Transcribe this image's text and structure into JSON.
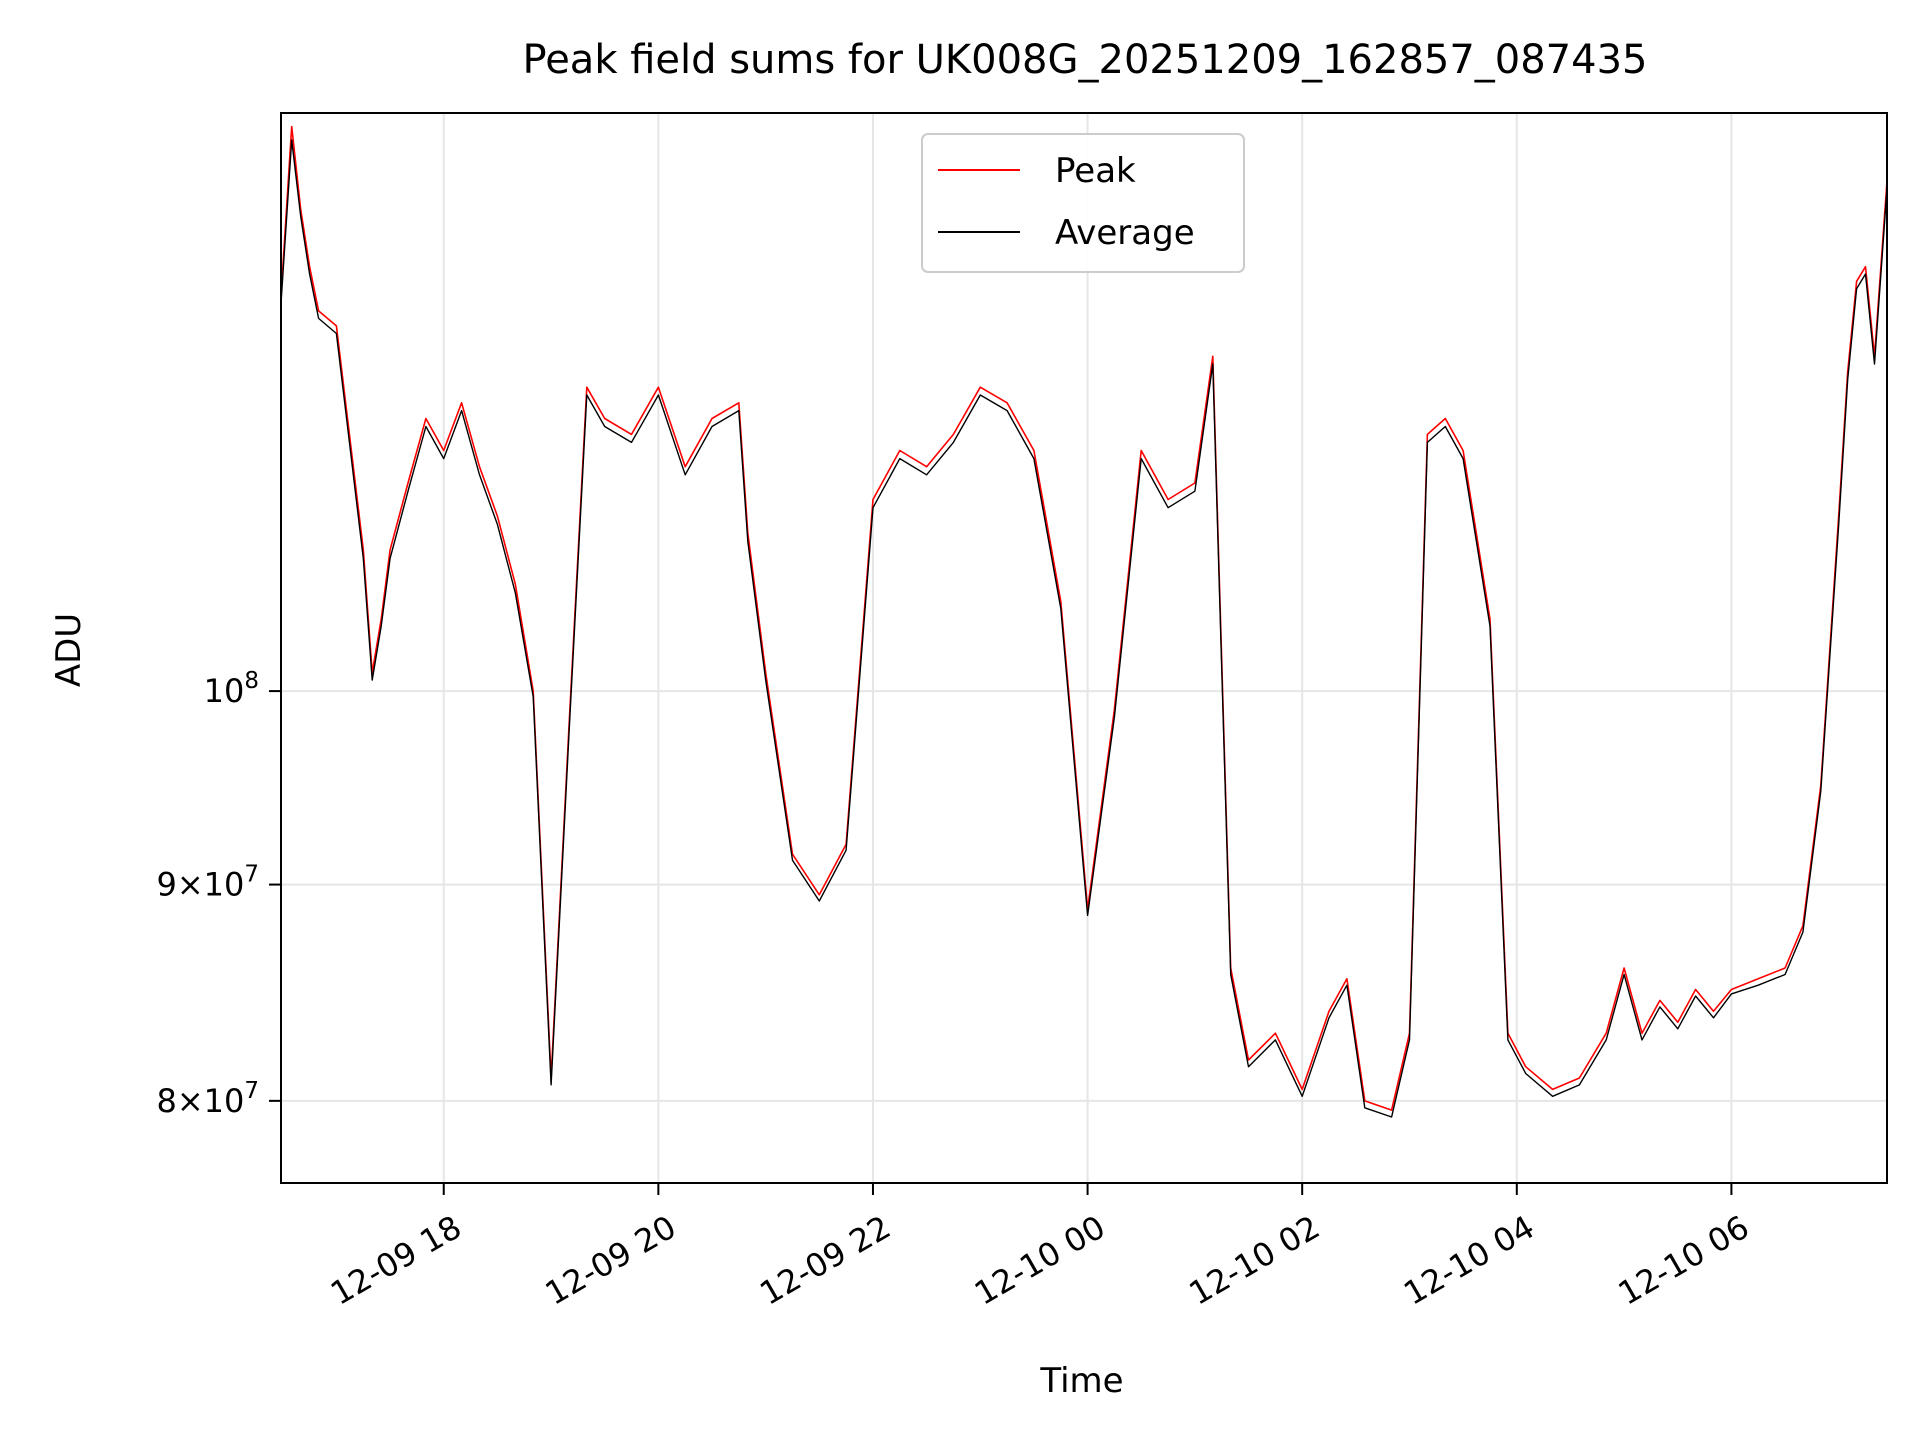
{
  "chart_data": {
    "type": "line",
    "title": "Peak field sums for UK008G_20251209_162857_087435",
    "xlabel": "Time",
    "ylabel": "ADU",
    "yscale": "log",
    "ylim": [
      76500000,
      137000000
    ],
    "xlim": [
      "2025-12-09 16:29",
      "2025-12-10 07:27"
    ],
    "grid": true,
    "legend_placement": "upper center",
    "x_ticks": [
      {
        "x": "2025-12-09 18:00",
        "label": "12-09 18"
      },
      {
        "x": "2025-12-09 20:00",
        "label": "12-09 20"
      },
      {
        "x": "2025-12-09 22:00",
        "label": "12-09 22"
      },
      {
        "x": "2025-12-10 00:00",
        "label": "12-10 00"
      },
      {
        "x": "2025-12-10 02:00",
        "label": "12-10 02"
      },
      {
        "x": "2025-12-10 04:00",
        "label": "12-10 04"
      },
      {
        "x": "2025-12-10 06:00",
        "label": "12-10 06"
      }
    ],
    "y_ticks": [
      {
        "value": 80000000,
        "base": "8",
        "exp": "7"
      },
      {
        "value": 90000000,
        "base": "9",
        "exp": "7"
      },
      {
        "value": 100000000,
        "base": "",
        "exp": "8"
      }
    ],
    "series": [
      {
        "name": "Peak",
        "color": "#ff0000",
        "x": [
          "2025-12-09 16:29",
          "2025-12-09 16:35",
          "2025-12-09 16:40",
          "2025-12-09 16:45",
          "2025-12-09 16:50",
          "2025-12-09 17:00",
          "2025-12-09 17:15",
          "2025-12-09 17:20",
          "2025-12-09 17:25",
          "2025-12-09 17:30",
          "2025-12-09 17:40",
          "2025-12-09 17:50",
          "2025-12-09 18:00",
          "2025-12-09 18:10",
          "2025-12-09 18:20",
          "2025-12-09 18:30",
          "2025-12-09 18:40",
          "2025-12-09 18:50",
          "2025-12-09 19:00",
          "2025-12-09 19:10",
          "2025-12-09 19:20",
          "2025-12-09 19:30",
          "2025-12-09 19:45",
          "2025-12-09 20:00",
          "2025-12-09 20:15",
          "2025-12-09 20:30",
          "2025-12-09 20:45",
          "2025-12-09 20:50",
          "2025-12-09 21:00",
          "2025-12-09 21:15",
          "2025-12-09 21:30",
          "2025-12-09 21:45",
          "2025-12-09 22:00",
          "2025-12-09 22:15",
          "2025-12-09 22:30",
          "2025-12-09 22:45",
          "2025-12-09 23:00",
          "2025-12-09 23:15",
          "2025-12-09 23:30",
          "2025-12-09 23:45",
          "2025-12-10 00:00",
          "2025-12-10 00:15",
          "2025-12-10 00:30",
          "2025-12-10 00:45",
          "2025-12-10 01:00",
          "2025-12-10 01:10",
          "2025-12-10 01:20",
          "2025-12-10 01:30",
          "2025-12-10 01:45",
          "2025-12-10 02:00",
          "2025-12-10 02:15",
          "2025-12-10 02:25",
          "2025-12-10 02:35",
          "2025-12-10 02:50",
          "2025-12-10 03:00",
          "2025-12-10 03:10",
          "2025-12-10 03:20",
          "2025-12-10 03:30",
          "2025-12-10 03:45",
          "2025-12-10 03:55",
          "2025-12-10 04:05",
          "2025-12-10 04:20",
          "2025-12-10 04:35",
          "2025-12-10 04:50",
          "2025-12-10 05:00",
          "2025-12-10 05:10",
          "2025-12-10 05:20",
          "2025-12-10 05:30",
          "2025-12-10 05:40",
          "2025-12-10 05:50",
          "2025-12-10 06:00",
          "2025-12-10 06:15",
          "2025-12-10 06:30",
          "2025-12-10 06:40",
          "2025-12-10 06:50",
          "2025-12-10 07:00",
          "2025-12-10 07:05",
          "2025-12-10 07:10",
          "2025-12-10 07:15",
          "2025-12-10 07:20",
          "2025-12-10 07:27"
        ],
        "values": [
          124000000,
          136000000,
          130000000,
          126000000,
          123000000,
          122000000,
          108000000,
          101000000,
          104000000,
          108000000,
          112000000,
          116000000,
          114000000,
          117000000,
          113000000,
          110000000,
          106000000,
          100000000,
          81000000,
          98000000,
          118000000,
          116000000,
          115000000,
          118000000,
          113000000,
          116000000,
          117000000,
          109000000,
          101000000,
          91500000,
          89500000,
          92000000,
          111000000,
          114000000,
          113000000,
          115000000,
          118000000,
          117000000,
          114000000,
          105000000,
          88800000,
          99000000,
          114000000,
          111000000,
          112000000,
          120000000,
          86000000,
          81800000,
          83000000,
          80500000,
          84000000,
          85500000,
          80000000,
          79600000,
          83000000,
          115000000,
          116000000,
          114000000,
          104000000,
          83000000,
          81500000,
          80500000,
          81000000,
          83000000,
          86000000,
          83000000,
          84500000,
          83500000,
          85000000,
          84000000,
          85000000,
          85500000,
          86000000,
          88000000,
          95000000,
          110000000,
          119000000,
          125000000,
          126000000,
          120000000,
          132000000
        ]
      },
      {
        "name": "Average",
        "color": "#000000",
        "x": [
          "2025-12-09 16:29",
          "2025-12-09 16:35",
          "2025-12-09 16:40",
          "2025-12-09 16:45",
          "2025-12-09 16:50",
          "2025-12-09 17:00",
          "2025-12-09 17:15",
          "2025-12-09 17:20",
          "2025-12-09 17:25",
          "2025-12-09 17:30",
          "2025-12-09 17:40",
          "2025-12-09 17:50",
          "2025-12-09 18:00",
          "2025-12-09 18:10",
          "2025-12-09 18:20",
          "2025-12-09 18:30",
          "2025-12-09 18:40",
          "2025-12-09 18:50",
          "2025-12-09 19:00",
          "2025-12-09 19:10",
          "2025-12-09 19:20",
          "2025-12-09 19:30",
          "2025-12-09 19:45",
          "2025-12-09 20:00",
          "2025-12-09 20:15",
          "2025-12-09 20:30",
          "2025-12-09 20:45",
          "2025-12-09 20:50",
          "2025-12-09 21:00",
          "2025-12-09 21:15",
          "2025-12-09 21:30",
          "2025-12-09 21:45",
          "2025-12-09 22:00",
          "2025-12-09 22:15",
          "2025-12-09 22:30",
          "2025-12-09 22:45",
          "2025-12-09 23:00",
          "2025-12-09 23:15",
          "2025-12-09 23:30",
          "2025-12-09 23:45",
          "2025-12-10 00:00",
          "2025-12-10 00:15",
          "2025-12-10 00:30",
          "2025-12-10 00:45",
          "2025-12-10 01:00",
          "2025-12-10 01:10",
          "2025-12-10 01:20",
          "2025-12-10 01:30",
          "2025-12-10 01:45",
          "2025-12-10 02:00",
          "2025-12-10 02:15",
          "2025-12-10 02:25",
          "2025-12-10 02:35",
          "2025-12-10 02:50",
          "2025-12-10 03:00",
          "2025-12-10 03:10",
          "2025-12-10 03:20",
          "2025-12-10 03:30",
          "2025-12-10 03:45",
          "2025-12-10 03:55",
          "2025-12-10 04:05",
          "2025-12-10 04:20",
          "2025-12-10 04:35",
          "2025-12-10 04:50",
          "2025-12-10 05:00",
          "2025-12-10 05:10",
          "2025-12-10 05:20",
          "2025-12-10 05:30",
          "2025-12-10 05:40",
          "2025-12-10 05:50",
          "2025-12-10 06:00",
          "2025-12-10 06:15",
          "2025-12-10 06:30",
          "2025-12-10 06:40",
          "2025-12-10 06:50",
          "2025-12-10 07:00",
          "2025-12-10 07:05",
          "2025-12-10 07:10",
          "2025-12-10 07:15",
          "2025-12-10 07:20",
          "2025-12-10 07:27"
        ],
        "values": [
          123500000,
          135000000,
          129500000,
          125500000,
          122500000,
          121500000,
          107500000,
          100600000,
          103600000,
          107500000,
          111500000,
          115500000,
          113500000,
          116500000,
          112500000,
          109500000,
          105500000,
          99700000,
          80700000,
          97600000,
          117500000,
          115500000,
          114500000,
          117500000,
          112500000,
          115500000,
          116500000,
          108500000,
          100600000,
          91200000,
          89200000,
          91700000,
          110500000,
          113500000,
          112500000,
          114500000,
          117500000,
          116500000,
          113500000,
          104600000,
          88500000,
          98600000,
          113500000,
          110500000,
          111500000,
          119500000,
          85700000,
          81500000,
          82700000,
          80200000,
          83700000,
          85200000,
          79700000,
          79300000,
          82700000,
          114500000,
          115500000,
          113500000,
          103600000,
          82700000,
          81200000,
          80200000,
          80700000,
          82700000,
          85700000,
          82700000,
          84200000,
          83200000,
          84700000,
          83700000,
          84800000,
          85200000,
          85700000,
          87700000,
          94700000,
          109500000,
          118500000,
          124500000,
          125500000,
          119500000,
          131500000
        ]
      }
    ]
  }
}
